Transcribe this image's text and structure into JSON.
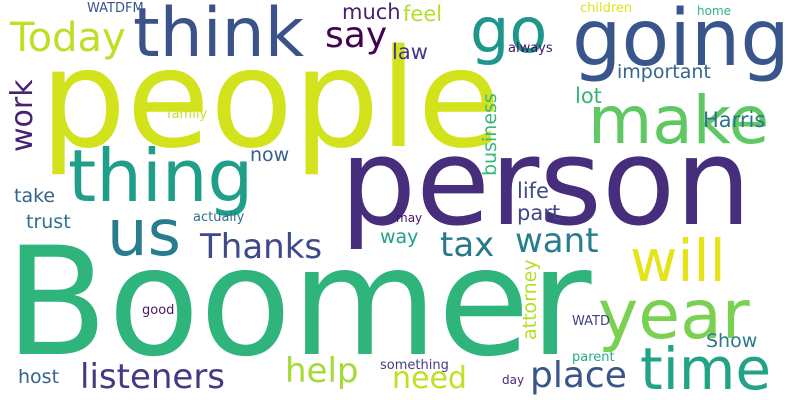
{
  "cloud": {
    "words": [
      {
        "text": "people",
        "color": "#d2e21b"
      },
      {
        "text": "person",
        "color": "#472e7c"
      },
      {
        "text": "Boomer",
        "color": "#2fb47c"
      },
      {
        "text": "going",
        "color": "#39568c"
      },
      {
        "text": "think",
        "color": "#3b528b"
      },
      {
        "text": "thing",
        "color": "#1f9e89"
      },
      {
        "text": "make",
        "color": "#5ec962"
      },
      {
        "text": "go",
        "color": "#1f968b"
      },
      {
        "text": "year",
        "color": "#7ad151"
      },
      {
        "text": "will",
        "color": "#e5e419"
      },
      {
        "text": "time",
        "color": "#20a386"
      },
      {
        "text": "us",
        "color": "#287c8e"
      },
      {
        "text": "Today",
        "color": "#bddf26"
      },
      {
        "text": "say",
        "color": "#440154"
      },
      {
        "text": "Thanks",
        "color": "#3e4a89"
      },
      {
        "text": "listeners",
        "color": "#443983"
      },
      {
        "text": "want",
        "color": "#287d8e"
      },
      {
        "text": "tax",
        "color": "#2a788e"
      },
      {
        "text": "place",
        "color": "#39568c"
      },
      {
        "text": "help",
        "color": "#a5db36"
      },
      {
        "text": "need",
        "color": "#c2df23"
      },
      {
        "text": "work",
        "color": "#482173"
      },
      {
        "text": "important",
        "color": "#31678e"
      },
      {
        "text": "Harris",
        "color": "#2c738e"
      },
      {
        "text": "much",
        "color": "#481f70"
      },
      {
        "text": "feel",
        "color": "#b5de2b"
      },
      {
        "text": "lot",
        "color": "#32b67a"
      },
      {
        "text": "law",
        "color": "#453781"
      },
      {
        "text": "life",
        "color": "#3e4989"
      },
      {
        "text": "part",
        "color": "#404688"
      },
      {
        "text": "now",
        "color": "#34618d"
      },
      {
        "text": "take",
        "color": "#33638d"
      },
      {
        "text": "trust",
        "color": "#2d708e"
      },
      {
        "text": "way",
        "color": "#1fa287"
      },
      {
        "text": "host",
        "color": "#33628d"
      },
      {
        "text": "Show",
        "color": "#2a788e"
      },
      {
        "text": "business",
        "color": "#37b878"
      },
      {
        "text": "attorney",
        "color": "#b5de2b"
      },
      {
        "text": "WATDFM",
        "color": "#3b528b"
      },
      {
        "text": "children",
        "color": "#dde318"
      },
      {
        "text": "home",
        "color": "#2fb47c"
      },
      {
        "text": "always",
        "color": "#471164"
      },
      {
        "text": "family",
        "color": "#cae11f"
      },
      {
        "text": "actually",
        "color": "#2e6f8e"
      },
      {
        "text": "may",
        "color": "#471365"
      },
      {
        "text": "good",
        "color": "#48186a"
      },
      {
        "text": "WATD",
        "color": "#404588"
      },
      {
        "text": "parent",
        "color": "#25ac82"
      },
      {
        "text": "something",
        "color": "#433e85"
      },
      {
        "text": "day",
        "color": "#482878"
      }
    ]
  }
}
